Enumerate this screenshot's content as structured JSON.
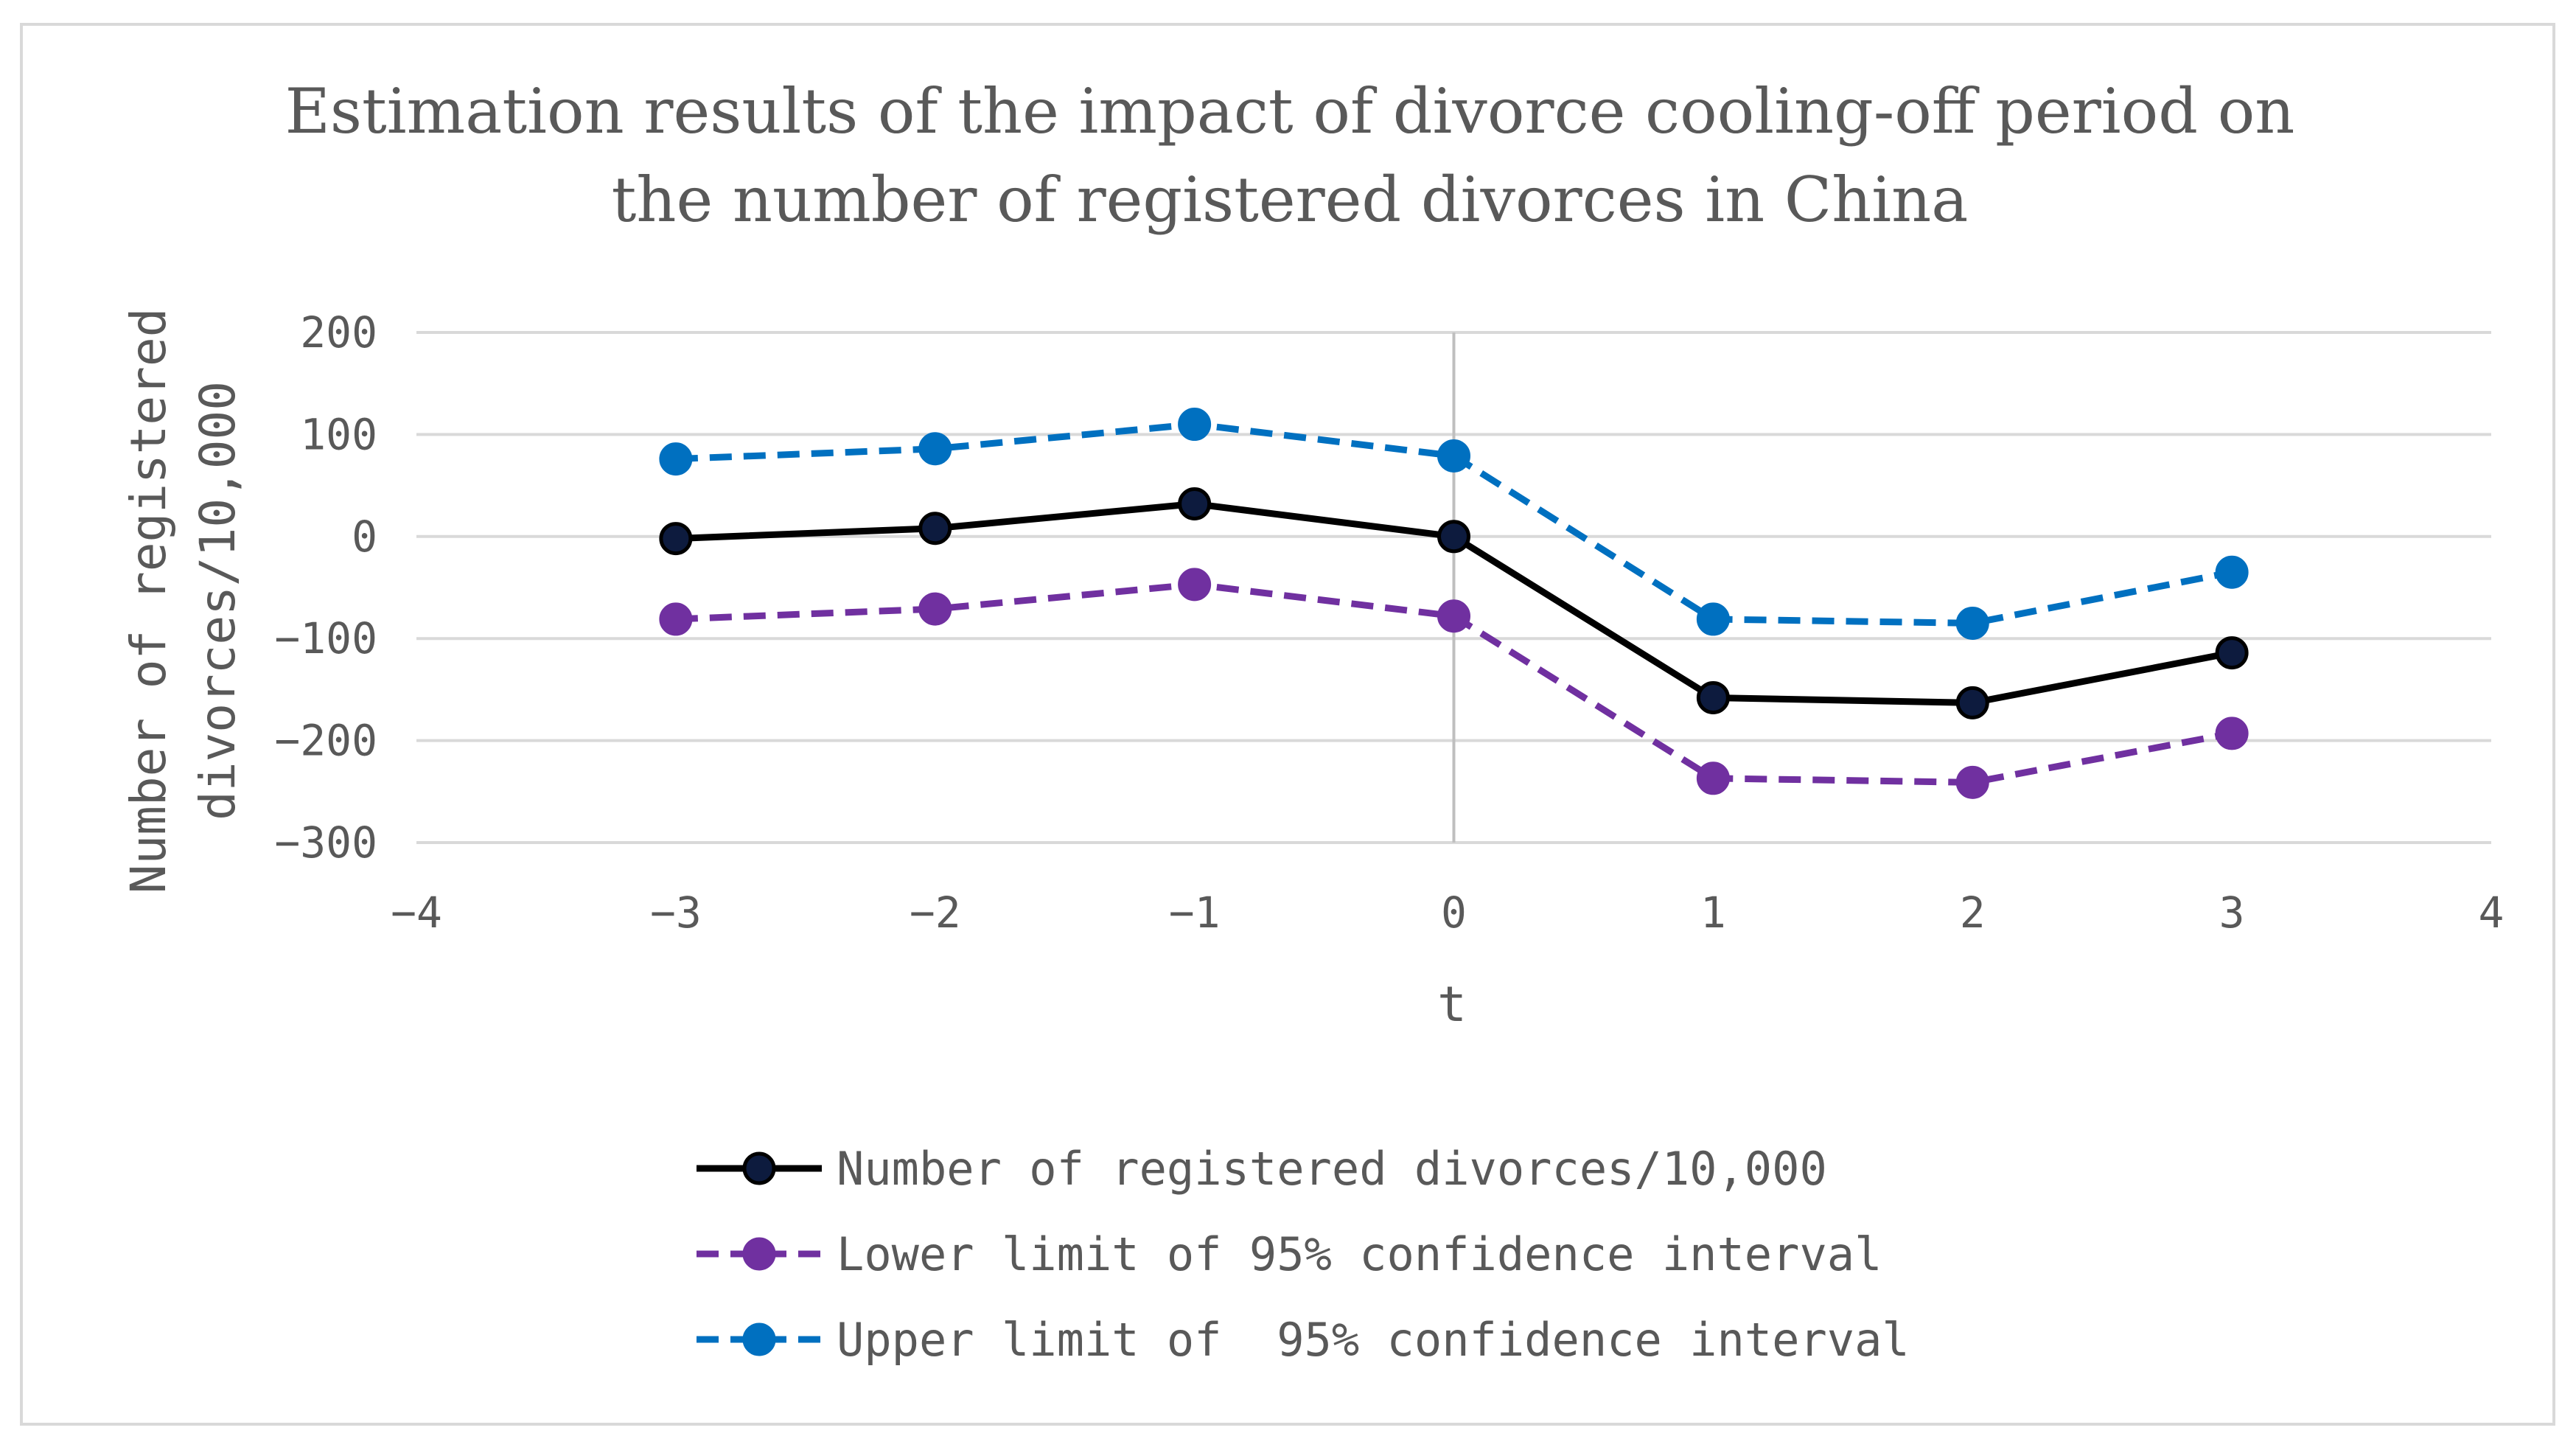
{
  "chart_data": {
    "type": "line",
    "title": [
      "Estimation results of the impact of divorce cooling-off period on",
      "the number of registered divorces in China"
    ],
    "xlabel": "t",
    "ylabel": [
      "Number of registered",
      "divorces/10,000"
    ],
    "xlim": [
      -4,
      4
    ],
    "ylim": [
      -300,
      200
    ],
    "x_ticks": [
      "−4",
      "−3",
      "−2",
      "−1",
      "0",
      "1",
      "2",
      "3",
      "4"
    ],
    "y_ticks": [
      "200",
      "100",
      "0",
      "−100",
      "−200",
      "−300"
    ],
    "grid": true,
    "legend_position": "bottom",
    "x": [
      -3,
      -2,
      -1,
      0,
      1,
      2,
      3
    ],
    "series": [
      {
        "name": "Number of registered divorces/10,000",
        "values": [
          -2,
          8,
          32,
          0,
          -158,
          -163,
          -114
        ],
        "color": "#000000",
        "marker_fill": "#0d1b3e",
        "dash": "solid"
      },
      {
        "name": "Lower limit of 95% confidence interval",
        "values": [
          -81,
          -71,
          -47,
          -78,
          -237,
          -241,
          -193
        ],
        "color": "#7030a0",
        "marker_fill": "#7030a0",
        "dash": "dashed"
      },
      {
        "name": "Upper limit of  95% confidence interval",
        "values": [
          76,
          86,
          110,
          79,
          -81,
          -85,
          -35
        ],
        "color": "#0070c0",
        "marker_fill": "#0070c0",
        "dash": "dashed"
      }
    ]
  }
}
